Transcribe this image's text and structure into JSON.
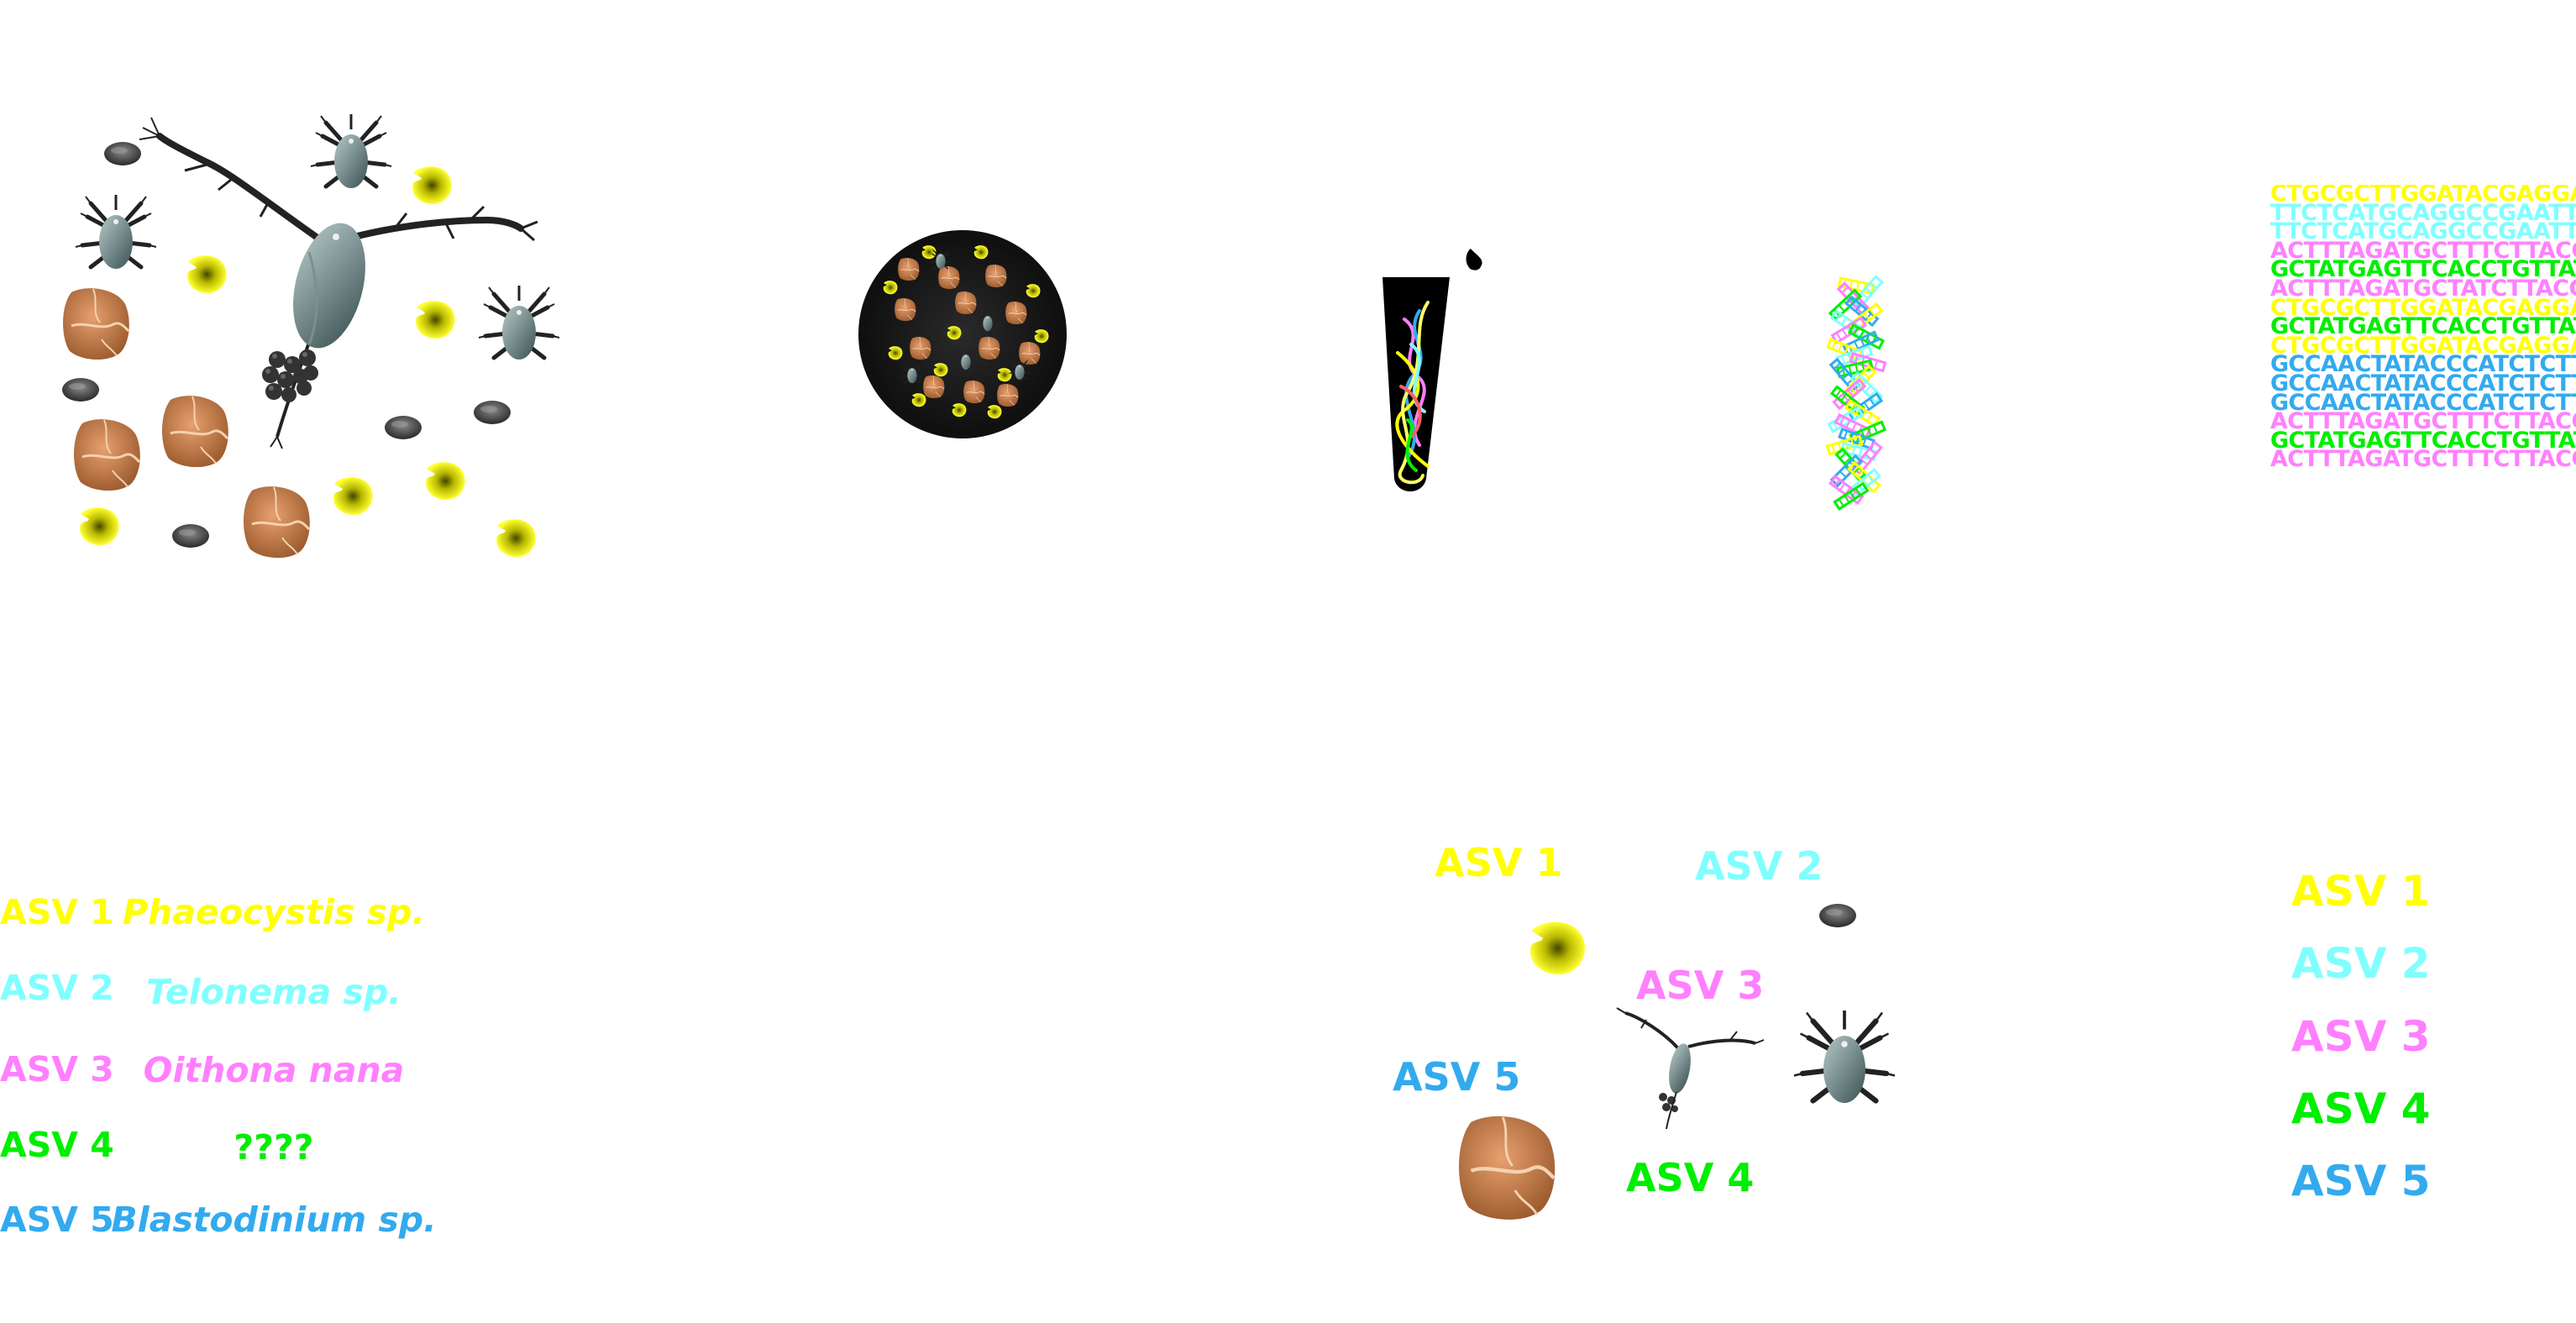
{
  "colors": {
    "asv1": "#ffff00",
    "asv2": "#80ffff",
    "asv3": "#ff80ff",
    "asv4": "#00ee00",
    "asv5": "#33aaee"
  },
  "icons": [
    "copepod-icon",
    "nauplius-icon",
    "dinoflagellate-icon",
    "phaeocystis-icon",
    "flagellate-icon",
    "filter-icon",
    "tube-icon",
    "dna-strand-icon"
  ],
  "sequences": [
    {
      "text": "CTGCGCTTGGATACGAGGAT",
      "color": "asv1"
    },
    {
      "text": "TTCTCATGCAGGCCGAATTG",
      "color": "asv2"
    },
    {
      "text": "TTCTCATGCAGGCCGAATTG",
      "color": "asv2"
    },
    {
      "text": "ACTTTAGATGCTTTCTTACC",
      "color": "asv3"
    },
    {
      "text": "GCTATGAGTTCACCTGTTAT",
      "color": "asv4"
    },
    {
      "text": "ACTTTAGATGCTATCTTACC",
      "color": "asv3"
    },
    {
      "text": "CTGCGCTTGGATACGAGGAT",
      "color": "asv1"
    },
    {
      "text": "GCTATGAGTTCACCTGTTAT",
      "color": "asv4"
    },
    {
      "text": "CTGCGCTTGGATACGAGGAT",
      "color": "asv1"
    },
    {
      "text": "GCCAACTATACCCATCTCTT",
      "color": "asv5"
    },
    {
      "text": "GCCAACTATACCCATCTCTT",
      "color": "asv5"
    },
    {
      "text": "GCCAACTATACCCATCTCTT",
      "color": "asv5"
    },
    {
      "text": "ACTTTAGATGCTTTCTTACC",
      "color": "asv3"
    },
    {
      "text": "GCTATGAGTTCACCTGTTAT",
      "color": "asv4"
    },
    {
      "text": "ACTTTAGATGCTTTCTTACC",
      "color": "asv3"
    }
  ],
  "asv_list": [
    "ASV  1",
    "ASV 2",
    "ASV 3",
    "ASV 4",
    "ASV 5"
  ],
  "taxonomy": [
    {
      "asv": "ASV  1",
      "taxon": "Phaeocystis sp."
    },
    {
      "asv": "ASV 2",
      "taxon": "Telonema sp."
    },
    {
      "asv": "ASV 3",
      "taxon": "Oithona nana"
    },
    {
      "asv": "ASV 4",
      "taxon": "????"
    },
    {
      "asv": "ASV 5",
      "taxon": "Blastodinium sp."
    }
  ],
  "mapped": [
    "ASV  1",
    "ASV 2",
    "ASV 3",
    "ASV 4",
    "ASV 5"
  ]
}
